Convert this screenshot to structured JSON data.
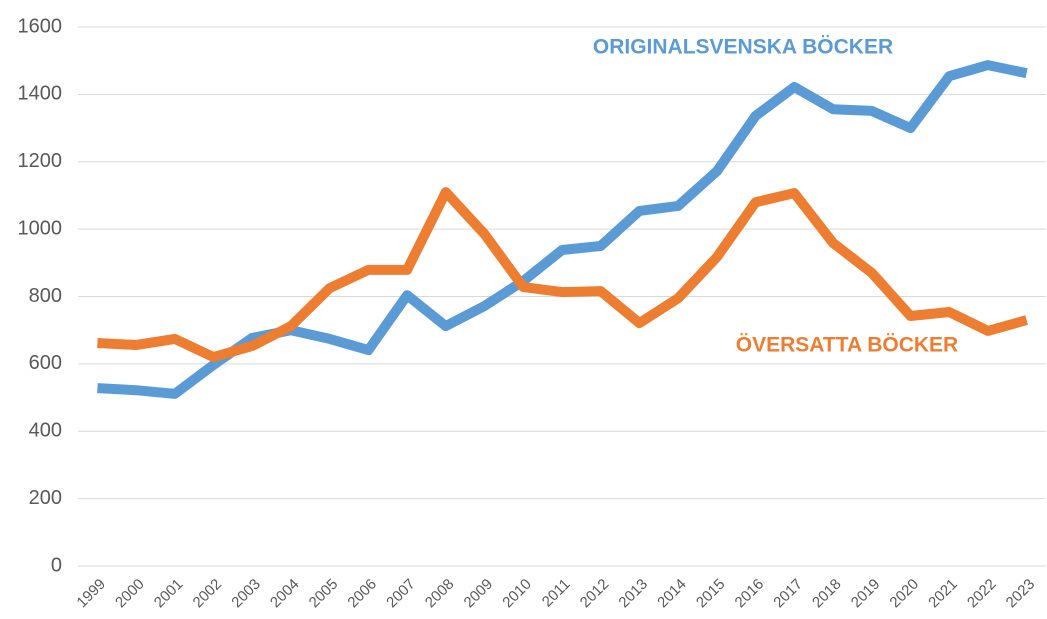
{
  "chart_data": {
    "type": "line",
    "categories": [
      "1999",
      "2000",
      "2001",
      "2002",
      "2003",
      "2004",
      "2005",
      "2006",
      "2007",
      "2008",
      "2009",
      "2010",
      "2011",
      "2012",
      "2013",
      "2014",
      "2015",
      "2016",
      "2017",
      "2018",
      "2019",
      "2020",
      "2021",
      "2022",
      "2023"
    ],
    "series": [
      {
        "name": "ORIGINALSVENSKA BÖCKER",
        "color": "#5b9bd5",
        "values": [
          528,
          522,
          511,
          597,
          677,
          700,
          674,
          641,
          804,
          712,
          772,
          846,
          938,
          950,
          1054,
          1069,
          1172,
          1336,
          1422,
          1356,
          1351,
          1300,
          1454,
          1487,
          1463
        ]
      },
      {
        "name": "ÖVERSATTA BÖCKER",
        "color": "#ed7d31",
        "values": [
          662,
          656,
          674,
          620,
          653,
          712,
          825,
          879,
          879,
          1110,
          985,
          828,
          813,
          816,
          721,
          795,
          917,
          1080,
          1107,
          959,
          870,
          742,
          754,
          698,
          730
        ]
      }
    ],
    "ylim": [
      0,
      1600
    ],
    "yticks": [
      0,
      200,
      400,
      600,
      800,
      1000,
      1200,
      1400,
      1600
    ],
    "grid": true
  }
}
